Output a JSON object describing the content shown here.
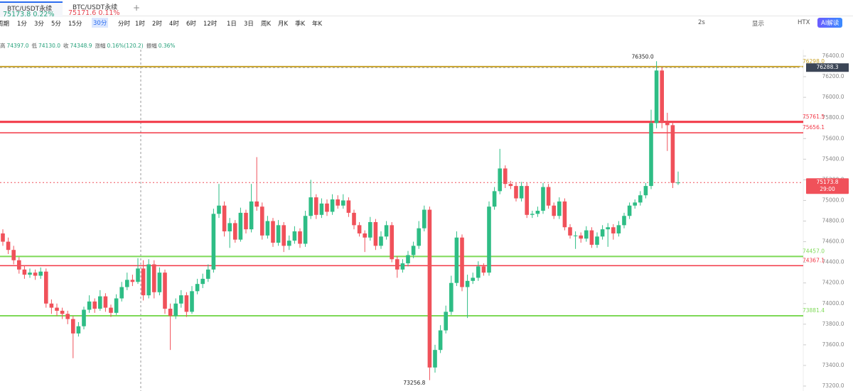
{
  "tabs": [
    {
      "name": "BTC/USDT永续",
      "price": "75173.8",
      "change": "0.22%"
    },
    {
      "name": "BTC/USDT永续",
      "price": "75171.6",
      "change": "0.11%"
    }
  ],
  "toolbar": {
    "period": "周期",
    "intervals": [
      "1分",
      "3分",
      "5分",
      "15分",
      "30分",
      "分时",
      "1时",
      "2时",
      "4时",
      "6时",
      "12时",
      "1日",
      "3日",
      "周K",
      "月K",
      "季K",
      "年K"
    ],
    "active": 4,
    "right": [
      "2s",
      "显示",
      "HTX"
    ],
    "ai_button": "AI解读"
  },
  "ohlc_info": [
    {
      "label": "高",
      "value": "74397.0"
    },
    {
      "label": "低",
      "value": "74130.0"
    },
    {
      "label": "收",
      "value": "74348.9"
    },
    {
      "label": "涨幅",
      "value": "0.16%(120.2)"
    },
    {
      "label": "振幅",
      "value": "0.36%"
    }
  ],
  "chart_data": {
    "type": "candlestick",
    "up_color": "#2ebd85",
    "down_color": "#f0515a",
    "ylim": [
      73152,
      76462
    ],
    "yticks": [
      {
        "value": 73200,
        "label": "73200.0"
      },
      {
        "value": 73400,
        "label": "73400.0"
      },
      {
        "value": 73600,
        "label": "73600.0"
      },
      {
        "value": 73800,
        "label": "73800.0"
      },
      {
        "value": 74000,
        "label": "74000.0"
      },
      {
        "value": 74200,
        "label": "74200.0"
      },
      {
        "value": 74400,
        "label": "74400.0"
      },
      {
        "value": 74600,
        "label": "74600.0"
      },
      {
        "value": 74800,
        "label": "74800.0"
      },
      {
        "value": 75000,
        "label": "75000.0"
      },
      {
        "value": 75200,
        "label": "75200.0"
      },
      {
        "value": 75400,
        "label": "75400.0"
      },
      {
        "value": 75600,
        "label": "75600.0"
      },
      {
        "value": 75800,
        "label": "75800.0"
      },
      {
        "value": 76000,
        "label": "76000.0"
      },
      {
        "value": 76200,
        "label": "76200.0"
      },
      {
        "value": 76400,
        "label": "76400.0"
      }
    ],
    "levels": [
      {
        "value": 76298.0,
        "label": "76298.0",
        "color": "#c9a227"
      },
      {
        "value": 75761.5,
        "label": "75761.5",
        "color": "#f23645"
      },
      {
        "value": 75656.1,
        "label": "75656.1",
        "color": "#f23645"
      },
      {
        "value": 74457.0,
        "label": "74457.0",
        "color": "#7ed957"
      },
      {
        "value": 74367.1,
        "label": "74367.1",
        "color": "#f23645"
      },
      {
        "value": 73881.4,
        "label": "73881.4",
        "color": "#7ed957"
      }
    ],
    "current": {
      "value": 75173.8,
      "label": "75173.8",
      "countdown": "29:00"
    },
    "crosshair": {
      "value": 76288.3,
      "label": "76288.3"
    },
    "high_note": {
      "value": 76350.0,
      "label": "76350.0"
    },
    "low_note": {
      "value": 73256.8,
      "label": "73256.8"
    },
    "candles": [
      [
        74680,
        74720,
        74560,
        74600
      ],
      [
        74600,
        74640,
        74480,
        74520
      ],
      [
        74520,
        74560,
        74380,
        74420
      ],
      [
        74420,
        74450,
        74290,
        74330
      ],
      [
        74330,
        74370,
        74240,
        74280
      ],
      [
        74280,
        74340,
        74250,
        74300
      ],
      [
        74300,
        74330,
        74230,
        74270
      ],
      [
        74270,
        74350,
        74240,
        74310
      ],
      [
        74310,
        74340,
        73960,
        74000
      ],
      [
        74000,
        74040,
        73900,
        73960
      ],
      [
        73960,
        74000,
        73880,
        73930
      ],
      [
        73930,
        73960,
        73850,
        73900
      ],
      [
        73900,
        73930,
        73800,
        73850
      ],
      [
        73850,
        73880,
        73470,
        73710
      ],
      [
        73710,
        73820,
        73680,
        73780
      ],
      [
        73780,
        73970,
        73750,
        73940
      ],
      [
        73940,
        74080,
        73910,
        74020
      ],
      [
        74020,
        74050,
        73910,
        73950
      ],
      [
        73950,
        74130,
        73930,
        74070
      ],
      [
        74070,
        74100,
        73920,
        73960
      ],
      [
        73960,
        73990,
        73870,
        73910
      ],
      [
        73910,
        74090,
        73890,
        74050
      ],
      [
        74050,
        74210,
        74020,
        74160
      ],
      [
        74160,
        74300,
        74130,
        74230
      ],
      [
        74230,
        74280,
        74170,
        74210
      ],
      [
        74210,
        74440,
        74190,
        74340
      ],
      [
        74340,
        74420,
        74030,
        74080
      ],
      [
        74080,
        74430,
        74050,
        74380
      ],
      [
        74380,
        74420,
        74050,
        74110
      ],
      [
        74110,
        74350,
        74080,
        74300
      ],
      [
        74300,
        74330,
        73900,
        73950
      ],
      [
        73950,
        74000,
        73550,
        73880
      ],
      [
        73880,
        74050,
        73850,
        74000
      ],
      [
        74000,
        74130,
        73960,
        74080
      ],
      [
        74080,
        74110,
        73870,
        73920
      ],
      [
        73920,
        74170,
        73900,
        74120
      ],
      [
        74120,
        74240,
        74090,
        74190
      ],
      [
        74190,
        74290,
        74150,
        74240
      ],
      [
        74240,
        74380,
        74210,
        74330
      ],
      [
        74330,
        74920,
        74300,
        74870
      ],
      [
        74870,
        75160,
        74830,
        74950
      ],
      [
        74950,
        74990,
        74650,
        74700
      ],
      [
        74700,
        74830,
        74540,
        74780
      ],
      [
        74780,
        74810,
        74590,
        74620
      ],
      [
        74620,
        74930,
        74600,
        74880
      ],
      [
        74880,
        74910,
        74680,
        74720
      ],
      [
        74720,
        75160,
        74690,
        74990
      ],
      [
        74990,
        75420,
        74900,
        74940
      ],
      [
        74940,
        74980,
        74620,
        74660
      ],
      [
        74660,
        74850,
        74630,
        74800
      ],
      [
        74800,
        74830,
        74550,
        74590
      ],
      [
        74590,
        74810,
        74560,
        74760
      ],
      [
        74760,
        74790,
        74500,
        74560
      ],
      [
        74560,
        74660,
        74520,
        74610
      ],
      [
        74610,
        74750,
        74580,
        74700
      ],
      [
        74700,
        74730,
        74540,
        74580
      ],
      [
        74580,
        74900,
        74550,
        74850
      ],
      [
        74850,
        75200,
        74820,
        75030
      ],
      [
        75030,
        75060,
        74820,
        74860
      ],
      [
        74860,
        75020,
        74830,
        74970
      ],
      [
        74970,
        75010,
        74850,
        74890
      ],
      [
        74890,
        75060,
        74860,
        75010
      ],
      [
        75010,
        75050,
        74920,
        74950
      ],
      [
        74950,
        75060,
        74920,
        75000
      ],
      [
        75000,
        75030,
        74840,
        74880
      ],
      [
        74880,
        74910,
        74720,
        74760
      ],
      [
        74760,
        74790,
        74650,
        74680
      ],
      [
        74680,
        74710,
        74500,
        74640
      ],
      [
        74640,
        74840,
        74610,
        74790
      ],
      [
        74790,
        74820,
        74520,
        74560
      ],
      [
        74560,
        74700,
        74530,
        74650
      ],
      [
        74650,
        74800,
        74620,
        74760
      ],
      [
        74760,
        74790,
        74400,
        74430
      ],
      [
        74430,
        74460,
        74250,
        74330
      ],
      [
        74330,
        74430,
        74300,
        74390
      ],
      [
        74390,
        74510,
        74360,
        74470
      ],
      [
        74470,
        74600,
        74440,
        74560
      ],
      [
        74560,
        74800,
        74530,
        74730
      ],
      [
        74730,
        74950,
        74700,
        74910
      ],
      [
        74910,
        74940,
        73256.8,
        73380
      ],
      [
        73380,
        73600,
        73330,
        73550
      ],
      [
        73550,
        73790,
        73520,
        73740
      ],
      [
        73740,
        73980,
        73710,
        73920
      ],
      [
        73920,
        74270,
        73890,
        74200
      ],
      [
        74200,
        74700,
        74170,
        74640
      ],
      [
        74640,
        74670,
        74120,
        74160
      ],
      [
        74160,
        74280,
        73860,
        74220
      ],
      [
        74220,
        74300,
        74190,
        74250
      ],
      [
        74250,
        74410,
        74220,
        74360
      ],
      [
        74360,
        74390,
        74270,
        74300
      ],
      [
        74300,
        74990,
        74270,
        74940
      ],
      [
        74940,
        75130,
        74910,
        75090
      ],
      [
        75090,
        75500,
        75060,
        75310
      ],
      [
        75310,
        75340,
        75120,
        75160
      ],
      [
        75160,
        75190,
        75110,
        75140
      ],
      [
        75140,
        75170,
        74990,
        75020
      ],
      [
        75020,
        75180,
        74990,
        75140
      ],
      [
        75140,
        75170,
        74830,
        74860
      ],
      [
        74860,
        74900,
        74830,
        74870
      ],
      [
        74870,
        74940,
        74840,
        74900
      ],
      [
        74900,
        75170,
        74870,
        75130
      ],
      [
        75130,
        75160,
        74920,
        74950
      ],
      [
        74950,
        74980,
        74820,
        74850
      ],
      [
        74850,
        75030,
        74820,
        74990
      ],
      [
        74990,
        75020,
        74710,
        74740
      ],
      [
        74740,
        74770,
        74630,
        74660
      ],
      [
        74660,
        74700,
        74530,
        74660
      ],
      [
        74660,
        74690,
        74590,
        74630
      ],
      [
        74630,
        74750,
        74600,
        74710
      ],
      [
        74710,
        74740,
        74540,
        74570
      ],
      [
        74570,
        74690,
        74540,
        74650
      ],
      [
        74650,
        74760,
        74620,
        74720
      ],
      [
        74720,
        74780,
        74550,
        74740
      ],
      [
        74740,
        74770,
        74620,
        74680
      ],
      [
        74680,
        74800,
        74650,
        74760
      ],
      [
        74760,
        74880,
        74730,
        74850
      ],
      [
        74850,
        74980,
        74820,
        74950
      ],
      [
        74950,
        75010,
        74920,
        74980
      ],
      [
        74980,
        75090,
        74950,
        75050
      ],
      [
        75050,
        75170,
        75020,
        75140
      ],
      [
        75140,
        75880,
        75110,
        75750
      ],
      [
        75750,
        76350,
        75700,
        76260
      ],
      [
        76260,
        76290,
        75700,
        75760
      ],
      [
        75760,
        75850,
        75480,
        75730
      ],
      [
        75730,
        75760,
        75120,
        75170
      ],
      [
        75170,
        75280,
        75150,
        75173.8
      ]
    ]
  }
}
